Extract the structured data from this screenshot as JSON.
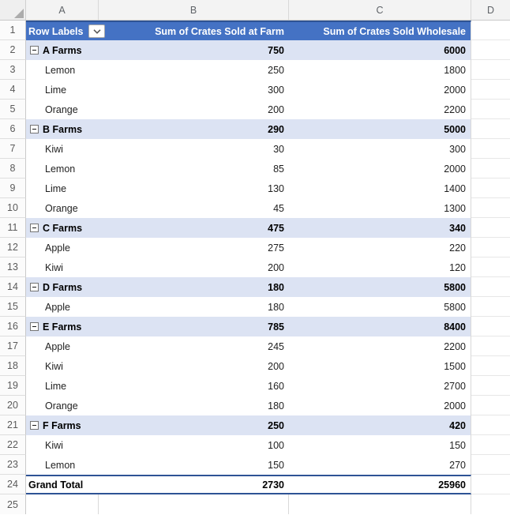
{
  "grid": {
    "column_letters": [
      "A",
      "B",
      "C",
      "D"
    ]
  },
  "pivot": {
    "header": {
      "row_labels": "Row Labels",
      "col_b": "Sum of Crates Sold at Farm",
      "col_c": "Sum of Crates Sold Wholesale",
      "filter_icon": "chevron-down"
    },
    "rows": [
      {
        "row": 2,
        "type": "group",
        "label": "A Farms",
        "farm_sales": 750,
        "wholesale_sales": 6000
      },
      {
        "row": 3,
        "type": "item",
        "label": "Lemon",
        "farm_sales": 250,
        "wholesale_sales": 1800
      },
      {
        "row": 4,
        "type": "item",
        "label": "Lime",
        "farm_sales": 300,
        "wholesale_sales": 2000
      },
      {
        "row": 5,
        "type": "item",
        "label": "Orange",
        "farm_sales": 200,
        "wholesale_sales": 2200
      },
      {
        "row": 6,
        "type": "group",
        "label": "B Farms",
        "farm_sales": 290,
        "wholesale_sales": 5000
      },
      {
        "row": 7,
        "type": "item",
        "label": "Kiwi",
        "farm_sales": 30,
        "wholesale_sales": 300
      },
      {
        "row": 8,
        "type": "item",
        "label": "Lemon",
        "farm_sales": 85,
        "wholesale_sales": 2000
      },
      {
        "row": 9,
        "type": "item",
        "label": "Lime",
        "farm_sales": 130,
        "wholesale_sales": 1400
      },
      {
        "row": 10,
        "type": "item",
        "label": "Orange",
        "farm_sales": 45,
        "wholesale_sales": 1300
      },
      {
        "row": 11,
        "type": "group",
        "label": "C Farms",
        "farm_sales": 475,
        "wholesale_sales": 340
      },
      {
        "row": 12,
        "type": "item",
        "label": "Apple",
        "farm_sales": 275,
        "wholesale_sales": 220
      },
      {
        "row": 13,
        "type": "item",
        "label": "Kiwi",
        "farm_sales": 200,
        "wholesale_sales": 120
      },
      {
        "row": 14,
        "type": "group",
        "label": "D Farms",
        "farm_sales": 180,
        "wholesale_sales": 5800
      },
      {
        "row": 15,
        "type": "item",
        "label": "Apple",
        "farm_sales": 180,
        "wholesale_sales": 5800
      },
      {
        "row": 16,
        "type": "group",
        "label": "E Farms",
        "farm_sales": 785,
        "wholesale_sales": 8400
      },
      {
        "row": 17,
        "type": "item",
        "label": "Apple",
        "farm_sales": 245,
        "wholesale_sales": 2200
      },
      {
        "row": 18,
        "type": "item",
        "label": "Kiwi",
        "farm_sales": 200,
        "wholesale_sales": 1500
      },
      {
        "row": 19,
        "type": "item",
        "label": "Lime",
        "farm_sales": 160,
        "wholesale_sales": 2700
      },
      {
        "row": 20,
        "type": "item",
        "label": "Orange",
        "farm_sales": 180,
        "wholesale_sales": 2000
      },
      {
        "row": 21,
        "type": "group",
        "label": "F Farms",
        "farm_sales": 250,
        "wholesale_sales": 420
      },
      {
        "row": 22,
        "type": "item",
        "label": "Kiwi",
        "farm_sales": 100,
        "wholesale_sales": 150
      },
      {
        "row": 23,
        "type": "item",
        "label": "Lemon",
        "farm_sales": 150,
        "wholesale_sales": 270
      },
      {
        "row": 24,
        "type": "grand_total",
        "label": "Grand Total",
        "farm_sales": 2730,
        "wholesale_sales": 25960
      }
    ],
    "empty_row": 25
  },
  "colors": {
    "pivot_header_fill": "#4472C4",
    "pivot_header_text": "#FFFFFF",
    "subtotal_fill": "#DCE3F3",
    "grand_total_border": "#2E5395",
    "gridline": "#D9D9D9"
  }
}
